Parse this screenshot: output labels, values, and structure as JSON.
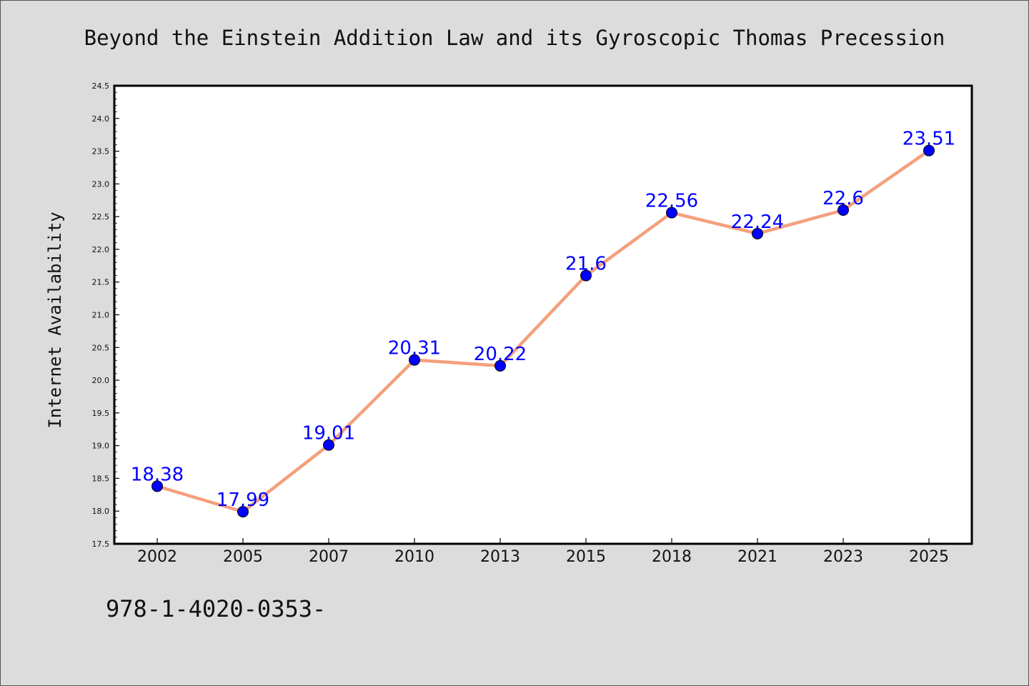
{
  "chart_data": {
    "type": "line",
    "title": "Beyond the Einstein Addition Law and its Gyroscopic Thomas Precession",
    "xlabel": "",
    "ylabel": "Internet Availability",
    "categories": [
      "2002",
      "2005",
      "2007",
      "2010",
      "2013",
      "2015",
      "2018",
      "2021",
      "2023",
      "2025"
    ],
    "series": [
      {
        "values": [
          18.38,
          17.99,
          19.01,
          20.31,
          20.22,
          21.6,
          22.56,
          22.24,
          22.6,
          23.51
        ],
        "labels": [
          "18.38",
          "17.99",
          "19.01",
          "20.31",
          "20.22",
          "21.6",
          "22.56",
          "22.24",
          "22.6",
          "23.51"
        ]
      }
    ],
    "ylim": [
      17.5,
      24.5
    ],
    "yticks": [
      "17.5",
      "18.0",
      "18.5",
      "19.0",
      "19.5",
      "20.0",
      "20.5",
      "21.0",
      "21.5",
      "22.0",
      "22.5",
      "23.0",
      "23.5",
      "24.0",
      "24.5"
    ],
    "grid": false,
    "colors": {
      "line": "#f4a07c",
      "marker": "#0000ff",
      "label": "#0000ff",
      "background": "#dcdcdc",
      "plot_area": "#ffffff"
    }
  },
  "footnote": "978-1-4020-0353-"
}
